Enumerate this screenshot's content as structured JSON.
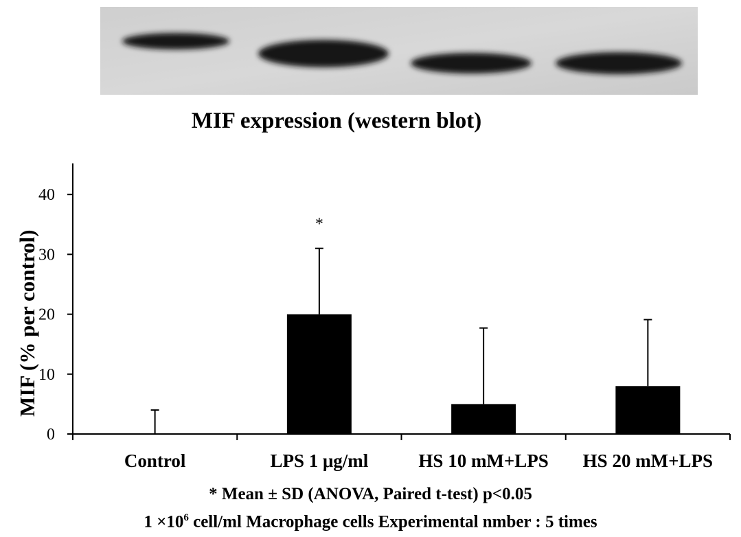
{
  "blot": {
    "title": "MIF expression (western blot)",
    "background_color": "#d3d3d3",
    "band_color": "#141414"
  },
  "chart_data": {
    "type": "bar",
    "categories": [
      "Control",
      "LPS 1 μg/ml",
      "HS 10 mM+LPS",
      "HS 20 mM+LPS"
    ],
    "values": [
      0,
      20,
      5,
      8
    ],
    "error_upper": [
      4,
      31,
      17.7,
      19.1
    ],
    "significance": [
      "",
      "*",
      "",
      ""
    ],
    "title": "",
    "xlabel": "",
    "ylabel": "MIF (% per control)",
    "ylim": [
      0,
      45
    ],
    "yticks": [
      0,
      10,
      20,
      30,
      40
    ],
    "bar_color": "#000000",
    "grid": false,
    "legend": "none"
  },
  "footnotes": {
    "line1": "* Mean ± SD (ANOVA, Paired t-test) p<0.05",
    "line2_prefix": "1 ×10",
    "line2_exponent": "6",
    "line2_suffix": " cell/ml  Macrophage cells  Experimental nmber : 5 times"
  }
}
